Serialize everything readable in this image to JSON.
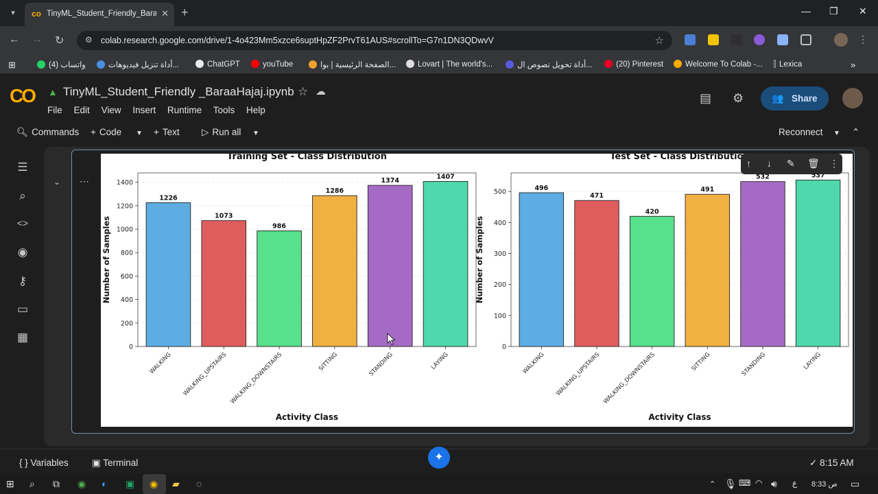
{
  "browser": {
    "tab_title": "TinyML_Student_Friendly_BaraaHajaj.ipynb - Colab",
    "url": "colab.research.google.com/drive/1-4o423Mm5xzce6suptHpZF2PrvT61AUS#scrollTo=G7n1DN3QDwvV",
    "bookmarks": [
      "واتساب (4)",
      "أداة تنزيل فيديوهات...",
      "ChatGPT",
      "youTube",
      "الصفحة الرئيسية | بوا...",
      "Lovart | The world's...",
      "أداة تحويل نصوص ال...",
      "(20) Pinterest",
      "Welcome To Colab -...",
      "Lexica"
    ]
  },
  "colab": {
    "notebook_title": "TinyML_Student_Friendly _BaraaHajaj.ipynb",
    "menu": [
      "File",
      "Edit",
      "View",
      "Insert",
      "Runtime",
      "Tools",
      "Help"
    ],
    "share_label": "Share",
    "commands_label": "Commands",
    "code_label": "Code",
    "text_label": "Text",
    "run_all_label": "Run all",
    "reconnect_label": "Reconnect",
    "variables_label": "Variables",
    "terminal_label": "Terminal",
    "status_time": "8:15 AM"
  },
  "taskbar": {
    "clock": "8:33 ص",
    "lang": "ع"
  },
  "chart_data": [
    {
      "type": "bar",
      "title": "Training Set - Class Distribution",
      "xlabel": "Activity Class",
      "ylabel": "Number of Samples",
      "categories": [
        "WALKING",
        "WALKING_UPSTAIRS",
        "WALKING_DOWNSTAIRS",
        "SITTING",
        "STANDING",
        "LAYING"
      ],
      "values": [
        1226,
        1073,
        986,
        1286,
        1374,
        1407
      ],
      "ylim": [
        0,
        1480
      ],
      "yticks": [
        0,
        200,
        400,
        600,
        800,
        1000,
        1200,
        1400
      ],
      "colors": [
        "#5dade2",
        "#e05d5d",
        "#58e08a",
        "#f0b042",
        "#a56bc4",
        "#4fd8ac"
      ],
      "grid": "y"
    },
    {
      "type": "bar",
      "title": "Test Set - Class Distribution",
      "xlabel": "Activity Class",
      "ylabel": "Number of Samples",
      "categories": [
        "WALKING",
        "WALKING_UPSTAIRS",
        "WALKING_DOWNSTAIRS",
        "SITTING",
        "STANDING",
        "LAYING"
      ],
      "values": [
        496,
        471,
        420,
        491,
        532,
        537
      ],
      "ylim": [
        0,
        560
      ],
      "yticks": [
        0,
        100,
        200,
        300,
        400,
        500
      ],
      "colors": [
        "#5dade2",
        "#e05d5d",
        "#58e08a",
        "#f0b042",
        "#a56bc4",
        "#4fd8ac"
      ],
      "grid": "y"
    }
  ]
}
